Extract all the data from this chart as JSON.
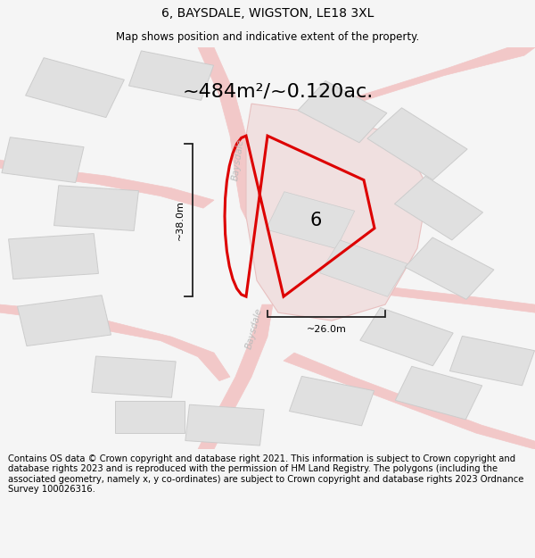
{
  "title": "6, BAYSDALE, WIGSTON, LE18 3XL",
  "subtitle": "Map shows position and indicative extent of the property.",
  "area_text": "~484m²/~0.120ac.",
  "property_label": "6",
  "dim_width": "~26.0m",
  "dim_height": "~38.0m",
  "road_label_1": "Baysdale",
  "road_label_2": "Baysdale",
  "footer": "Contains OS data © Crown copyright and database right 2021. This information is subject to Crown copyright and database rights 2023 and is reproduced with the permission of HM Land Registry. The polygons (including the associated geometry, namely x, y co-ordinates) are subject to Crown copyright and database rights 2023 Ordnance Survey 100026316.",
  "bg_color": "#f5f5f5",
  "map_bg": "#f8f8f8",
  "plot_color_fill": "none",
  "plot_color_edge": "#dd0000",
  "road_color": "#f2c8c8",
  "road_edge": "#e8aaaa",
  "building_color": "#e0e0e0",
  "building_edge": "#cccccc",
  "surround_color": "#f0e0e0",
  "surround_edge": "#e8c0c0",
  "dim_line_color": "#222222",
  "title_fontsize": 10,
  "subtitle_fontsize": 8.5,
  "area_fontsize": 16,
  "footer_fontsize": 7.2
}
